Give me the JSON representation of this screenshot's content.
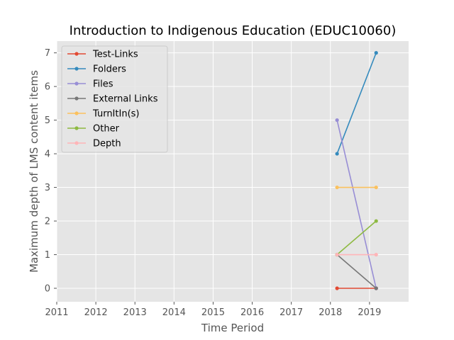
{
  "chart_data": {
    "type": "line",
    "title": "Introduction to Indigenous Education (EDUC10060)",
    "xlabel": "Time Period",
    "ylabel": "Maximum depth of LMS content items",
    "xlim": [
      2011,
      2020
    ],
    "ylim": [
      -0.4,
      7.35
    ],
    "xticks": [
      2011,
      2012,
      2013,
      2014,
      2015,
      2016,
      2017,
      2018,
      2019
    ],
    "yticks": [
      0,
      1,
      2,
      3,
      4,
      5,
      6,
      7
    ],
    "grid": true,
    "legend_position": "upper-left",
    "x": [
      2018.17,
      2019.17
    ],
    "series": [
      {
        "name": "Test-Links",
        "color": "#e24a33",
        "values": [
          0,
          0
        ]
      },
      {
        "name": "Folders",
        "color": "#348abd",
        "values": [
          4,
          7
        ]
      },
      {
        "name": "Files",
        "color": "#988ed5",
        "values": [
          5,
          0
        ]
      },
      {
        "name": "External Links",
        "color": "#777777",
        "values": [
          1,
          0
        ]
      },
      {
        "name": "TurnItIn(s)",
        "color": "#fbc15e",
        "values": [
          3,
          3
        ]
      },
      {
        "name": "Other",
        "color": "#8eba42",
        "values": [
          1,
          2
        ]
      },
      {
        "name": "Depth",
        "color": "#ffb5b8",
        "values": [
          1,
          1
        ]
      }
    ]
  }
}
